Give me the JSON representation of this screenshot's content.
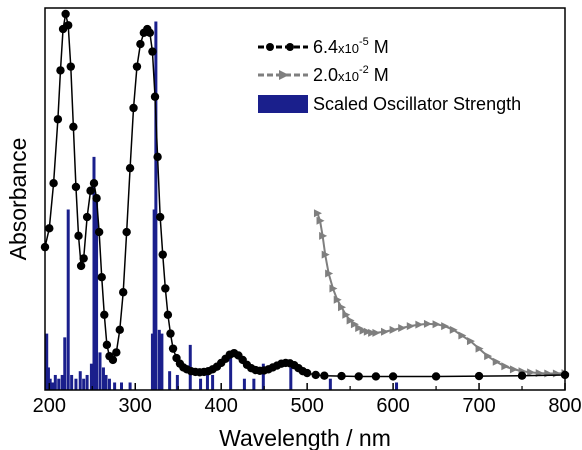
{
  "chart_data": {
    "type": "line",
    "title": "",
    "xlabel": "Wavelength / nm",
    "ylabel": "Absorbance",
    "xlim": [
      195,
      800
    ],
    "ylim": [
      0,
      1.0
    ],
    "x_ticks": [
      200,
      300,
      400,
      500,
      600,
      700,
      800
    ],
    "y_ticks_labeled": false,
    "grid": false,
    "legend_position": "top-right",
    "legend": [
      {
        "label_main": "6.4",
        "label_times": "x10",
        "label_exp": "-5",
        "label_unit": " M",
        "series": 0
      },
      {
        "label_main": "2.0",
        "label_times": "x10",
        "label_exp": "-2",
        "label_unit": " M",
        "series": 1
      },
      {
        "label_text": "Scaled Oscillator Strength",
        "series": 2
      }
    ],
    "colors": {
      "series_a": "#000000",
      "series_b": "#7f7f7f",
      "bars": "#1a1f8c"
    },
    "series": [
      {
        "name": "6.4x10^-5 M",
        "style": "line-circles",
        "x": [
          195,
          200,
          205,
          210,
          213,
          216,
          219,
          222,
          225,
          228,
          231,
          234,
          237,
          240,
          244,
          248,
          252,
          255,
          258,
          261,
          264,
          267,
          270,
          274,
          278,
          282,
          286,
          290,
          294,
          298,
          302,
          306,
          310,
          314,
          317,
          320,
          323,
          326,
          329,
          332,
          335,
          338,
          341,
          344,
          348,
          352,
          356,
          360,
          365,
          370,
          375,
          380,
          385,
          390,
          395,
          400,
          405,
          410,
          415,
          420,
          425,
          430,
          435,
          440,
          445,
          450,
          455,
          460,
          465,
          470,
          475,
          480,
          485,
          490,
          495,
          500,
          510,
          520,
          540,
          560,
          580,
          600,
          650,
          700,
          750,
          800
        ],
        "y": [
          0.38,
          0.43,
          0.55,
          0.72,
          0.85,
          0.96,
          1.0,
          0.97,
          0.86,
          0.7,
          0.54,
          0.41,
          0.33,
          0.35,
          0.46,
          0.53,
          0.55,
          0.51,
          0.42,
          0.3,
          0.2,
          0.12,
          0.09,
          0.08,
          0.1,
          0.16,
          0.26,
          0.42,
          0.59,
          0.75,
          0.86,
          0.92,
          0.95,
          0.96,
          0.95,
          0.9,
          0.78,
          0.62,
          0.46,
          0.36,
          0.27,
          0.2,
          0.15,
          0.11,
          0.085,
          0.07,
          0.06,
          0.055,
          0.05,
          0.048,
          0.047,
          0.048,
          0.05,
          0.055,
          0.062,
          0.072,
          0.083,
          0.094,
          0.098,
          0.092,
          0.08,
          0.067,
          0.058,
          0.053,
          0.051,
          0.052,
          0.055,
          0.06,
          0.065,
          0.07,
          0.072,
          0.071,
          0.066,
          0.058,
          0.05,
          0.045,
          0.04,
          0.038,
          0.037,
          0.036,
          0.036,
          0.036,
          0.036,
          0.037,
          0.038,
          0.04
        ]
      },
      {
        "name": "2.0x10^-2 M",
        "style": "line-triangles",
        "x": [
          512,
          515,
          518,
          521,
          525,
          530,
          535,
          540,
          545,
          550,
          555,
          560,
          565,
          570,
          575,
          580,
          590,
          600,
          610,
          620,
          630,
          640,
          650,
          660,
          670,
          680,
          690,
          700,
          710,
          720,
          730,
          740,
          750,
          760,
          770,
          780,
          790,
          800
        ],
        "y": [
          0.47,
          0.45,
          0.41,
          0.36,
          0.31,
          0.27,
          0.24,
          0.22,
          0.2,
          0.185,
          0.175,
          0.165,
          0.158,
          0.155,
          0.152,
          0.152,
          0.155,
          0.16,
          0.165,
          0.17,
          0.174,
          0.176,
          0.175,
          0.17,
          0.16,
          0.145,
          0.13,
          0.11,
          0.09,
          0.075,
          0.063,
          0.055,
          0.05,
          0.047,
          0.045,
          0.044,
          0.044,
          0.045
        ]
      },
      {
        "name": "Scaled Oscillator Strength",
        "style": "sticks",
        "x": [
          197,
          199,
          201,
          204,
          207,
          211,
          215,
          218,
          222,
          226,
          231,
          236,
          240,
          244,
          249,
          252,
          255,
          259,
          263,
          266,
          270,
          276,
          284,
          294,
          320,
          322,
          324,
          328,
          331,
          340,
          349,
          364,
          376,
          384,
          390,
          411,
          427,
          438,
          449,
          481,
          527,
          604
        ],
        "y": [
          0.15,
          0.06,
          0.03,
          0.02,
          0.04,
          0.03,
          0.04,
          0.14,
          0.48,
          0.04,
          0.03,
          0.05,
          0.03,
          0.04,
          0.07,
          0.62,
          0.52,
          0.1,
          0.06,
          0.04,
          0.03,
          0.02,
          0.02,
          0.02,
          0.15,
          0.48,
          0.98,
          0.16,
          0.15,
          0.05,
          0.04,
          0.12,
          0.03,
          0.05,
          0.04,
          0.1,
          0.03,
          0.03,
          0.07,
          0.06,
          0.03,
          0.02
        ]
      }
    ]
  }
}
